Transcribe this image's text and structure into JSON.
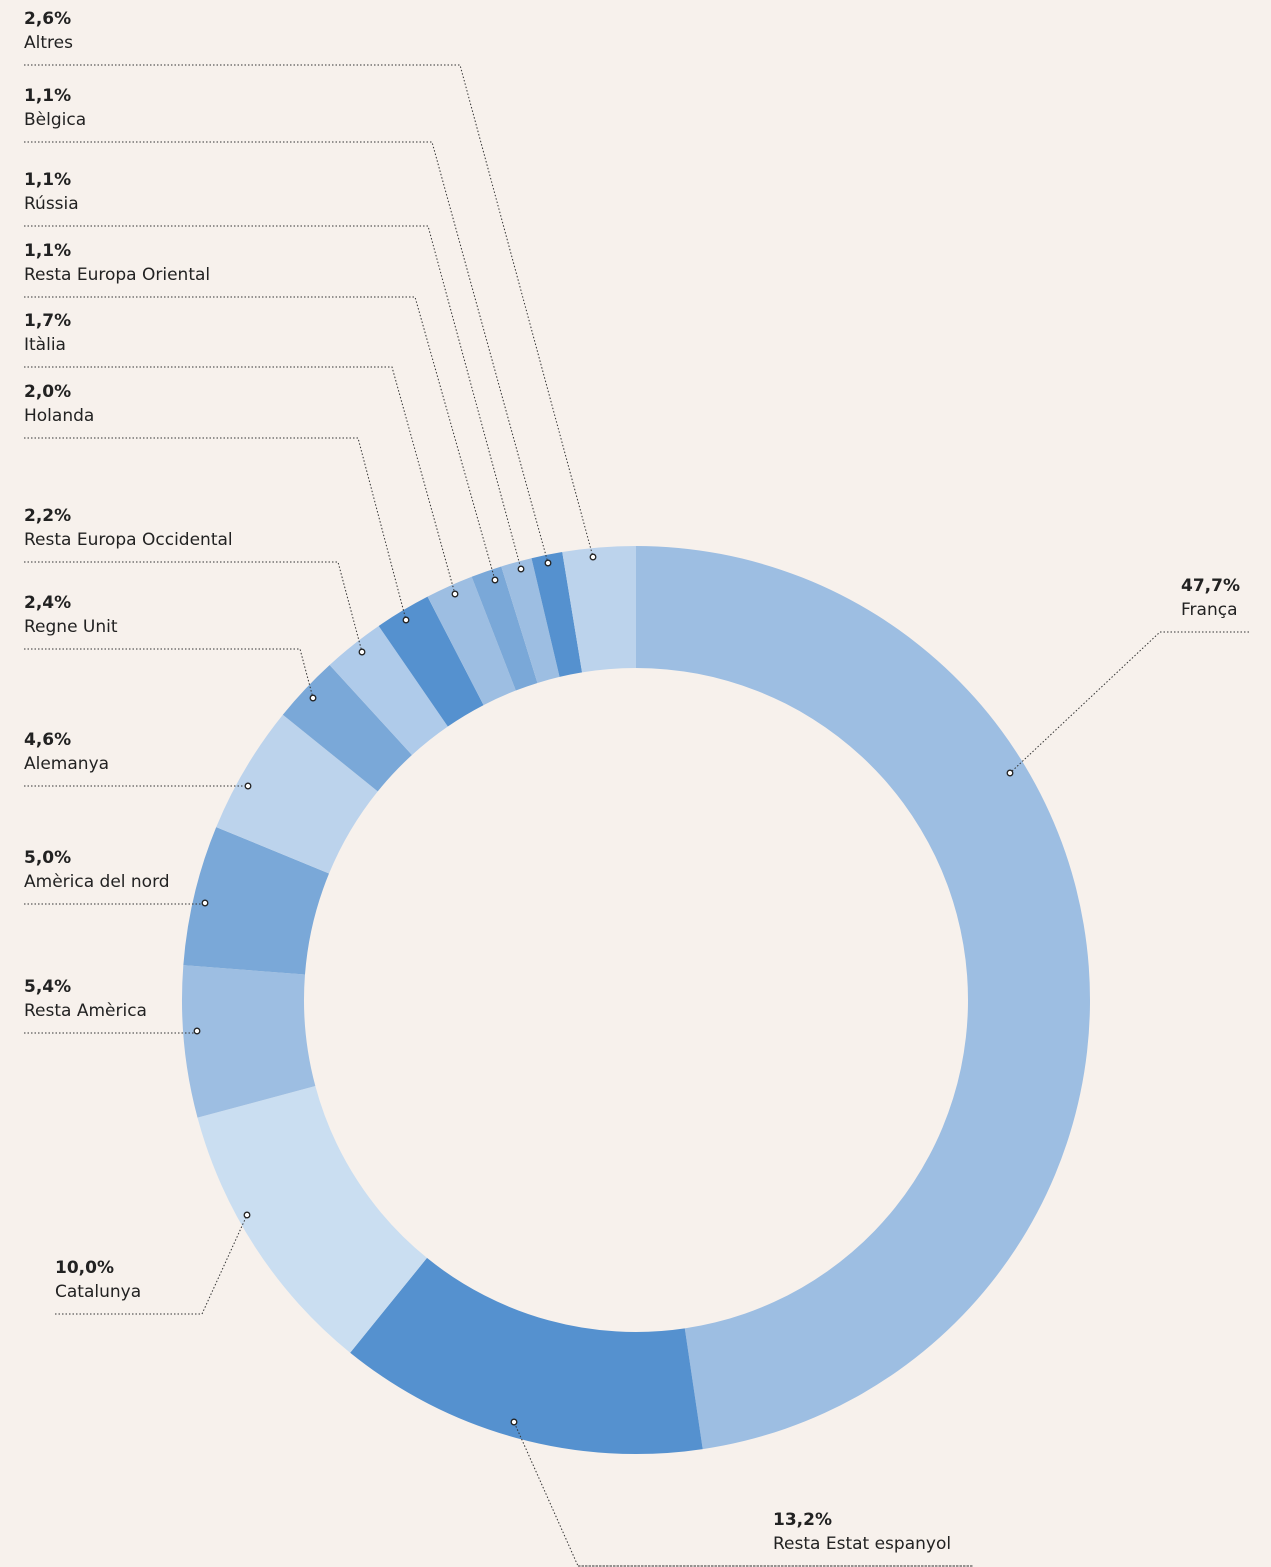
{
  "chart_data": {
    "type": "donut",
    "categories": [
      "França",
      "Resta Estat espanyol",
      "Catalunya",
      "Resta Amèrica",
      "Amèrica del nord",
      "Alemanya",
      "Regne Unit",
      "Resta Europa Occidental",
      "Holanda",
      "Itàlia",
      "Resta Europa Oriental",
      "Rússia",
      "Bèlgica",
      "Altres"
    ],
    "values": [
      47.7,
      13.2,
      10.0,
      5.4,
      5.0,
      4.6,
      2.4,
      2.2,
      2.0,
      1.7,
      1.1,
      1.1,
      1.1,
      2.6
    ],
    "value_labels": [
      "47,7%",
      "13,2%",
      "10,0%",
      "5,4%",
      "5,0%",
      "4,6%",
      "2,4%",
      "2,2%",
      "2,0%",
      "1,7%",
      "1,1%",
      "1,1%",
      "1,1%",
      "2,6%"
    ],
    "colors": [
      "#9dbee2",
      "#5591cf",
      "#cadef1",
      "#9dbee2",
      "#7aa8d8",
      "#bcd3ec",
      "#7aa8d8",
      "#afcbea",
      "#5591cf",
      "#9dbee2",
      "#7aa8d8",
      "#9dbee2",
      "#5591cf",
      "#bcd3ec"
    ]
  }
}
